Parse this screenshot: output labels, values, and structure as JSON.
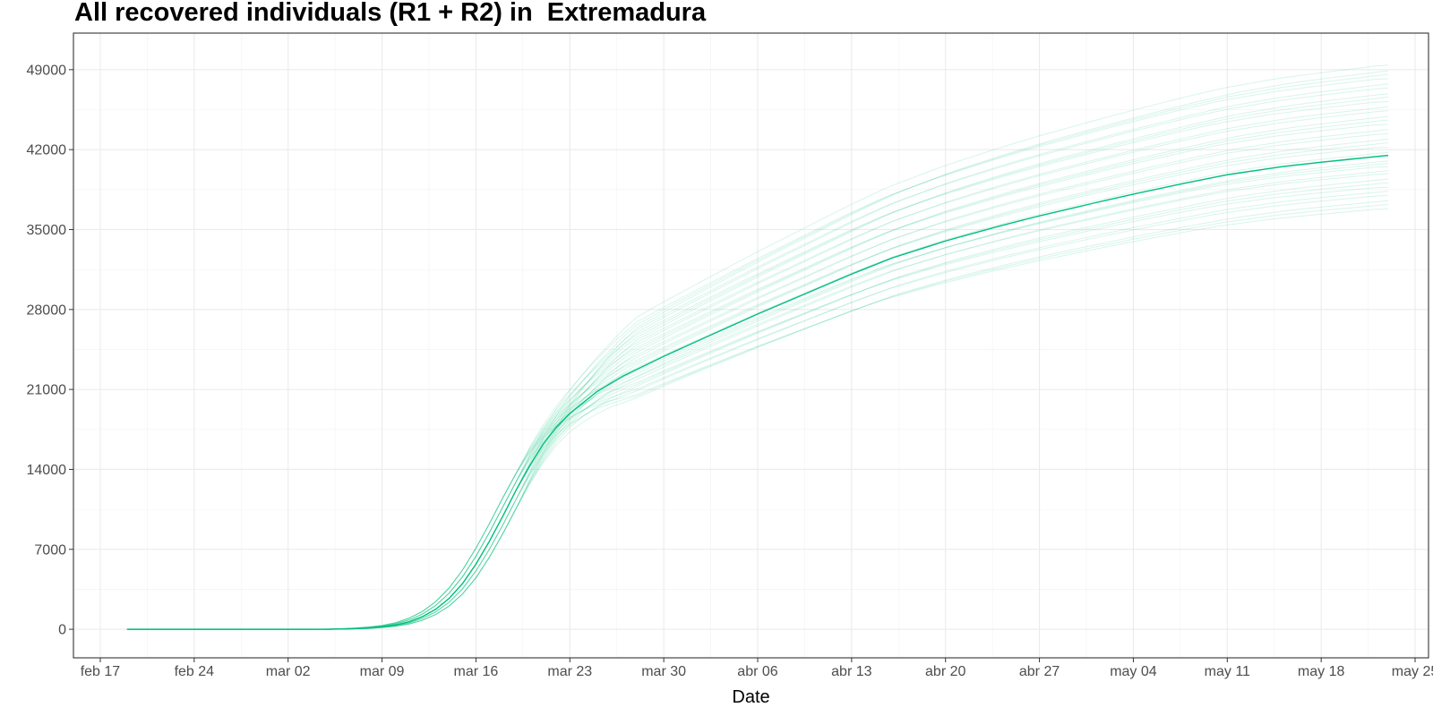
{
  "chart_data": {
    "type": "line",
    "title": "All recovered individuals (R1 + R2) in  Extremadura",
    "xlabel": "Date",
    "ylabel": "",
    "x_start": "2020-02-19",
    "x_end": "2020-05-23",
    "xlim": [
      "2020-02-15",
      "2020-05-26"
    ],
    "x_ticks": [
      {
        "date": "2020-02-17",
        "label": "feb 17"
      },
      {
        "date": "2020-02-24",
        "label": "feb 24"
      },
      {
        "date": "2020-03-02",
        "label": "mar 02"
      },
      {
        "date": "2020-03-09",
        "label": "mar 09"
      },
      {
        "date": "2020-03-16",
        "label": "mar 16"
      },
      {
        "date": "2020-03-23",
        "label": "mar 23"
      },
      {
        "date": "2020-03-30",
        "label": "mar 30"
      },
      {
        "date": "2020-04-06",
        "label": "abr 06"
      },
      {
        "date": "2020-04-13",
        "label": "abr 13"
      },
      {
        "date": "2020-04-20",
        "label": "abr 20"
      },
      {
        "date": "2020-04-27",
        "label": "abr 27"
      },
      {
        "date": "2020-05-04",
        "label": "may 04"
      },
      {
        "date": "2020-05-11",
        "label": "may 11"
      },
      {
        "date": "2020-05-18",
        "label": "may 18"
      },
      {
        "date": "2020-05-25",
        "label": "may 25"
      }
    ],
    "ylim": [
      -2500,
      52200
    ],
    "y_ticks": [
      0,
      7000,
      14000,
      21000,
      28000,
      35000,
      42000,
      49000
    ],
    "grid": true,
    "line_color": "#00BF7D",
    "main_series": {
      "points": [
        [
          "2020-02-19",
          0
        ],
        [
          "2020-03-05",
          0
        ],
        [
          "2020-03-07",
          60
        ],
        [
          "2020-03-08",
          120
        ],
        [
          "2020-03-09",
          220
        ],
        [
          "2020-03-10",
          380
        ],
        [
          "2020-03-11",
          650
        ],
        [
          "2020-03-12",
          1100
        ],
        [
          "2020-03-13",
          1750
        ],
        [
          "2020-03-14",
          2700
        ],
        [
          "2020-03-15",
          4000
        ],
        [
          "2020-03-16",
          5700
        ],
        [
          "2020-03-17",
          7700
        ],
        [
          "2020-03-18",
          9900
        ],
        [
          "2020-03-19",
          12200
        ],
        [
          "2020-03-20",
          14300
        ],
        [
          "2020-03-21",
          16200
        ],
        [
          "2020-03-22",
          17700
        ],
        [
          "2020-03-23",
          18900
        ],
        [
          "2020-03-25",
          20800
        ],
        [
          "2020-03-27",
          22200
        ],
        [
          "2020-03-30",
          23900
        ],
        [
          "2020-04-02",
          25500
        ],
        [
          "2020-04-06",
          27600
        ],
        [
          "2020-04-10",
          29600
        ],
        [
          "2020-04-13",
          31100
        ],
        [
          "2020-04-16",
          32500
        ],
        [
          "2020-04-20",
          34000
        ],
        [
          "2020-04-24",
          35300
        ],
        [
          "2020-04-27",
          36200
        ],
        [
          "2020-05-01",
          37300
        ],
        [
          "2020-05-04",
          38100
        ],
        [
          "2020-05-08",
          39100
        ],
        [
          "2020-05-11",
          39800
        ],
        [
          "2020-05-15",
          40500
        ],
        [
          "2020-05-18",
          40900
        ],
        [
          "2020-05-23",
          41500
        ]
      ]
    },
    "ensemble_final_values": [
      36800,
      37200,
      37600,
      38000,
      38400,
      38700,
      39100,
      39500,
      39900,
      40200,
      40500,
      40800,
      41100,
      41400,
      41800,
      42200,
      42600,
      43000,
      43400,
      43800,
      44200,
      44600,
      45000,
      45400,
      45800,
      46200,
      46600,
      47000,
      47400,
      47800,
      48200,
      48600,
      49000,
      49400
    ]
  }
}
